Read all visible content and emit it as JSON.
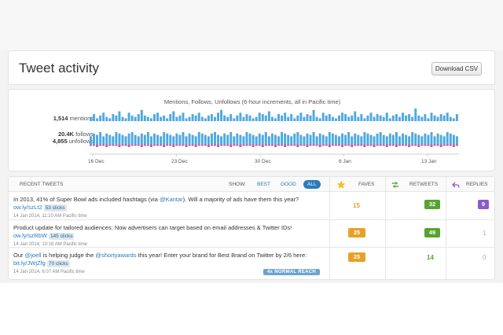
{
  "header": {
    "title": "Tweet activity",
    "download_label": "Download CSV"
  },
  "chart": {
    "title": "Mentions, Follows, Unfollows (6-hour increments, all in Pacific time)",
    "mentions_value": "1,514",
    "mentions_label": "mentions",
    "follows_value": "20.4K",
    "follows_label": "follows",
    "unfollows_value": "4,855",
    "unfollows_label": "unfollows",
    "ticks": [
      "16 Dec",
      "23 Dec",
      "30 Dec",
      "6 Jan",
      "13 Jan"
    ]
  },
  "chart_data": {
    "type": "bar",
    "title": "Mentions, Follows, Unfollows (6-hour increments, all in Pacific time)",
    "x_range": [
      "16 Dec",
      "13 Jan"
    ],
    "series": [
      {
        "name": "mentions",
        "color": "#4fa8e0",
        "values": [
          3,
          5,
          2,
          4,
          6,
          3,
          2,
          5,
          4,
          7,
          3,
          2,
          6,
          4,
          3,
          5,
          8,
          4,
          3,
          2,
          5,
          6,
          3,
          4,
          2,
          5,
          7,
          3,
          4,
          6,
          2,
          3,
          5,
          4,
          6,
          3,
          2,
          4,
          5,
          3,
          6,
          8,
          4,
          3,
          5,
          2,
          4,
          6,
          3,
          5,
          4,
          2,
          3,
          6,
          5,
          4,
          7,
          3,
          2,
          5,
          4,
          6,
          3,
          5,
          2,
          4,
          6,
          3,
          5,
          4,
          8,
          3,
          2,
          6,
          4,
          5,
          3,
          2,
          4,
          6,
          5,
          3,
          4,
          7,
          3,
          5,
          2,
          4,
          6,
          3,
          5,
          4,
          3,
          6,
          2,
          4,
          5,
          3,
          6,
          4,
          5,
          3,
          9,
          4,
          3,
          5,
          2,
          6,
          4,
          3,
          5,
          4,
          6,
          3,
          2,
          5
        ]
      },
      {
        "name": "follows",
        "color": "#4fa8e0",
        "values": [
          6,
          8,
          7,
          9,
          6,
          8,
          7,
          6,
          9,
          8,
          7,
          6,
          8,
          9,
          7,
          6,
          8,
          7,
          9,
          6,
          8,
          7,
          6,
          9,
          8,
          7,
          6,
          8,
          7,
          9,
          6,
          8,
          7,
          6,
          9,
          8,
          7,
          6,
          8,
          9,
          7,
          6,
          8,
          7,
          9,
          6,
          8,
          7,
          6,
          9,
          8,
          7,
          6,
          8,
          7,
          9,
          6,
          8,
          7,
          6,
          9,
          8,
          7,
          6,
          8,
          9,
          7,
          6,
          8,
          7,
          9,
          6,
          8,
          7,
          6,
          9,
          8,
          7,
          6,
          8,
          7,
          9,
          6,
          8,
          7,
          6,
          9,
          8,
          7,
          6,
          8,
          9,
          7,
          6,
          8,
          7,
          9,
          6,
          8,
          7,
          6,
          9,
          8,
          7,
          6,
          8,
          7,
          9,
          6,
          8,
          7,
          6,
          9,
          8,
          7,
          6
        ]
      },
      {
        "name": "unfollows",
        "color": "#e34a8b",
        "values": [
          1,
          1,
          2,
          1,
          1,
          2,
          1,
          1,
          1,
          2,
          1,
          1,
          2,
          1,
          1,
          1,
          2,
          1,
          1,
          2,
          1,
          1,
          1,
          2,
          1,
          1,
          2,
          1,
          1,
          1,
          2,
          1,
          1,
          2,
          1,
          1,
          1,
          2,
          1,
          1,
          2,
          1,
          1,
          1,
          2,
          1,
          1,
          2,
          1,
          1,
          1,
          2,
          1,
          1,
          2,
          1,
          1,
          1,
          2,
          1,
          1,
          2,
          1,
          1,
          1,
          2,
          1,
          1,
          2,
          1,
          1,
          1,
          2,
          1,
          1,
          2,
          1,
          1,
          1,
          2,
          1,
          1,
          2,
          1,
          1,
          1,
          2,
          1,
          1,
          2,
          1,
          1,
          1,
          2,
          1,
          1,
          2,
          1,
          1,
          1,
          2,
          1,
          1,
          2,
          1,
          1,
          1,
          2,
          1,
          1,
          2,
          1,
          1,
          1,
          2,
          1
        ]
      }
    ]
  },
  "table": {
    "recent_label": "RECENT TWEETS",
    "show_label": "SHOW:",
    "filters": [
      "BEST",
      "GOOD",
      "ALL"
    ],
    "faves_label": "FAVES",
    "retweets_label": "RETWEETS",
    "replies_label": "REPLIES",
    "rows": [
      {
        "text_a": "In 2013, 41% of Super Bowl ads included hashtags (via ",
        "mention": "@Kantar",
        "text_b": "). Will a majority of ads have them this year?",
        "link": "ow.ly/szLt2",
        "clicks": "53 clicks",
        "date": "14 Jan 2014, 11:10 AM Pacific time",
        "faves": "15",
        "retweets": "32",
        "replies": "9"
      },
      {
        "text_a": "Product update for tailored audiences: Now advertisers can target based on email addresses & Twitter IDs!",
        "link": "ow.ly/szRbW",
        "clicks": "145 clicks",
        "date": "14 Jan 2014, 10:16 AM Pacific time",
        "faves": "25",
        "retweets": "49",
        "replies": "1"
      },
      {
        "text_a": "Our ",
        "mention": "@joell",
        "text_b": " is helping judge the ",
        "mention2": "@shortyawards",
        "text_c": " this year! Enter your brand for Best Brand on Twitter by 2/6 here: ",
        "link": "bit.ly/JWjZfg",
        "clicks": "70 clicks",
        "date": "14 Jan 2014, 6:07 AM Pacific time",
        "reach": "4x NORMAL REACH",
        "faves": "25",
        "retweets": "14",
        "replies": "0"
      }
    ]
  },
  "colors": {
    "faves": "#e8a128",
    "retweets": "#58a332",
    "replies": "#8a5cc7",
    "link": "#2b7bb9"
  }
}
